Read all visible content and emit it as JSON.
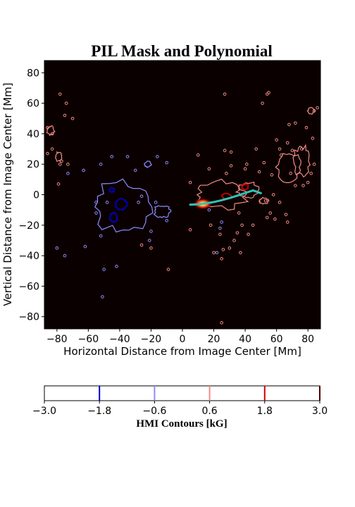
{
  "chart_data": {
    "type": "heatmap",
    "title": "PIL Mask and Polynomial",
    "xlabel": "Horizontal Distance from Image Center [Mm]",
    "ylabel": "Vertical Distance from Image Center [Mm]",
    "xlim": [
      -88,
      88
    ],
    "ylim": [
      -88,
      88
    ],
    "xticks": [
      -80,
      -60,
      -40,
      -20,
      0,
      20,
      40,
      60,
      80
    ],
    "yticks": [
      -80,
      -60,
      -40,
      -20,
      0,
      20,
      40,
      60,
      80
    ],
    "xtick_labels": [
      "−80",
      "−60",
      "−40",
      "−20",
      "0",
      "20",
      "40",
      "60",
      "80"
    ],
    "ytick_labels": [
      "−80",
      "−60",
      "−40",
      "−20",
      "0",
      "20",
      "40",
      "60",
      "80"
    ],
    "background_color": "#0b0000",
    "pil_mask": {
      "center": [
        13,
        -6
      ],
      "colors": [
        "#ffffff",
        "#ffd84d",
        "#ff4a1a",
        "#8a0000"
      ]
    },
    "polynomial": {
      "color": "#2ec4b6",
      "x": [
        5,
        10,
        15,
        20,
        25,
        30,
        35,
        40,
        45,
        50
      ],
      "y": [
        -6.5,
        -6.3,
        -5.7,
        -4.8,
        -3.6,
        -2.2,
        -0.6,
        1.1,
        2.8,
        1.0
      ]
    },
    "contours": {
      "positive_color": "#f28b82",
      "negative_color": "#8c8cff",
      "strong_positive_color": "#d40000",
      "strong_negative_color": "#0000c8",
      "positive_regions": [
        {
          "cx": 25,
          "cy": 0,
          "rx": 16,
          "ry": 9
        },
        {
          "cx": 42,
          "cy": 3,
          "rx": 7,
          "ry": 5
        },
        {
          "cx": 68,
          "cy": 18,
          "rx": 8,
          "ry": 9
        },
        {
          "cx": 76,
          "cy": 22,
          "rx": 5,
          "ry": 10
        },
        {
          "cx": -84,
          "cy": 42,
          "rx": 2.5,
          "ry": 3
        },
        {
          "cx": -79,
          "cy": 25,
          "rx": 2,
          "ry": 3
        },
        {
          "cx": 82,
          "cy": 55,
          "rx": 2,
          "ry": 2
        },
        {
          "cx": 52,
          "cy": -4,
          "rx": 3,
          "ry": 2
        }
      ],
      "negative_regions": [
        {
          "cx": -38,
          "cy": -8,
          "rx": 19,
          "ry": 17
        },
        {
          "cx": -13,
          "cy": -11,
          "rx": 5,
          "ry": 4
        },
        {
          "cx": -22,
          "cy": 20,
          "rx": 2,
          "ry": 2
        }
      ],
      "strong_positive_regions": [
        {
          "cx": 28,
          "cy": -1,
          "rx": 3,
          "ry": 2
        },
        {
          "cx": 40,
          "cy": 5,
          "rx": 2,
          "ry": 2
        }
      ],
      "strong_negative_regions": [
        {
          "cx": -39,
          "cy": -6,
          "rx": 3.5,
          "ry": 4
        },
        {
          "cx": -44,
          "cy": -15,
          "rx": 2.5,
          "ry": 3
        },
        {
          "cx": -45,
          "cy": 3,
          "rx": 1.5,
          "ry": 1.5
        }
      ],
      "positive_specks": [
        [
          -78,
          66
        ],
        [
          -74,
          60
        ],
        [
          -75,
          52
        ],
        [
          -70,
          50
        ],
        [
          -86,
          44
        ],
        [
          -83,
          40
        ],
        [
          -78,
          20
        ],
        [
          -73,
          20
        ],
        [
          -79,
          7
        ],
        [
          -83,
          30
        ],
        [
          -86,
          27
        ],
        [
          -77,
          22
        ],
        [
          27,
          29
        ],
        [
          31,
          28
        ],
        [
          17,
          17
        ],
        [
          31,
          19
        ],
        [
          40,
          17
        ],
        [
          41,
          20
        ],
        [
          52,
          21
        ],
        [
          49,
          15
        ],
        [
          57,
          13
        ],
        [
          58,
          0
        ],
        [
          62,
          -5
        ],
        [
          56,
          -12
        ],
        [
          54,
          -15
        ],
        [
          59,
          -16
        ],
        [
          45,
          -20
        ],
        [
          42,
          -26
        ],
        [
          35,
          -25
        ],
        [
          33,
          -30
        ],
        [
          30,
          -35
        ],
        [
          26,
          -36
        ],
        [
          37,
          -38
        ],
        [
          25,
          -42
        ],
        [
          20,
          -38
        ],
        [
          -26,
          -33
        ],
        [
          -20,
          -35
        ],
        [
          36,
          -12
        ],
        [
          38,
          -20
        ],
        [
          53,
          -4
        ],
        [
          25,
          -84
        ],
        [
          5,
          -23
        ],
        [
          18,
          -20
        ],
        [
          24,
          -26
        ],
        [
          86,
          57
        ],
        [
          84,
          55
        ],
        [
          83,
          37
        ],
        [
          79,
          44
        ],
        [
          72,
          47
        ],
        [
          68,
          46
        ],
        [
          60,
          36
        ],
        [
          67,
          34
        ],
        [
          70,
          29
        ],
        [
          76,
          30
        ],
        [
          63,
          26
        ],
        [
          62,
          30
        ],
        [
          69,
          14
        ],
        [
          72,
          6
        ],
        [
          77,
          6
        ],
        [
          80,
          8
        ],
        [
          82,
          14
        ],
        [
          84,
          20
        ],
        [
          54,
          66
        ],
        [
          55,
          67
        ],
        [
          27,
          66
        ],
        [
          51,
          60
        ],
        [
          47,
          30
        ],
        [
          10,
          26
        ],
        [
          -9,
          -49
        ],
        [
          5,
          8
        ],
        [
          28,
          14
        ],
        [
          66,
          -13
        ],
        [
          67,
          -18
        ]
      ],
      "negative_specks": [
        [
          -45,
          25
        ],
        [
          -35,
          25
        ],
        [
          -16,
          25
        ],
        [
          -10,
          21
        ],
        [
          -63,
          16
        ],
        [
          -73,
          14
        ],
        [
          -48,
          -5
        ],
        [
          -55,
          -12
        ],
        [
          -62,
          -34
        ],
        [
          -52,
          -27
        ],
        [
          -80,
          -35
        ],
        [
          -75,
          -40
        ],
        [
          -50,
          -49
        ],
        [
          -42,
          -47
        ],
        [
          -51,
          -67
        ],
        [
          -21,
          -30
        ],
        [
          -20,
          -24
        ],
        [
          -10,
          -17
        ],
        [
          -28,
          -5
        ],
        [
          -26,
          -1
        ],
        [
          -17,
          -5
        ],
        [
          25,
          -18
        ],
        [
          24,
          -22
        ],
        [
          22,
          -38
        ],
        [
          17,
          -10
        ],
        [
          -55,
          -5
        ],
        [
          -52,
          20
        ],
        [
          -30,
          16
        ]
      ]
    },
    "colorbar": {
      "label": "HMI Contours [kG]",
      "range": [
        -3.0,
        3.0
      ],
      "ticks": [
        -3.0,
        -1.8,
        -0.6,
        0.6,
        1.8,
        3.0
      ],
      "tick_labels": [
        "−3.0",
        "−1.8",
        "−0.6",
        "0.6",
        "1.8",
        "3.0"
      ],
      "lines": [
        {
          "value": -1.8,
          "color": "#0000c8"
        },
        {
          "value": -0.6,
          "color": "#8c8cff"
        },
        {
          "value": 0.6,
          "color": "#f28b82"
        },
        {
          "value": 1.8,
          "color": "#d40000"
        },
        {
          "value": 3.0,
          "color": "#550000"
        }
      ]
    }
  }
}
